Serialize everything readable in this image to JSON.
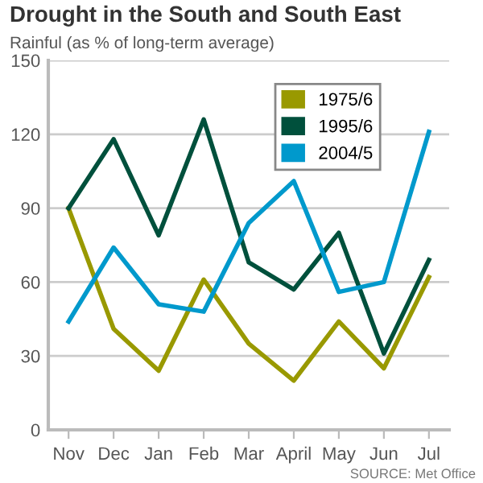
{
  "chart_data": {
    "type": "line",
    "title": "Drought in the South and South East",
    "ylabel": "Rainful (as % of long-term average)",
    "categories": [
      "Nov",
      "Dec",
      "Jan",
      "Feb",
      "Mar",
      "April",
      "May",
      "Jun",
      "Jul"
    ],
    "series": [
      {
        "name": "1975/6",
        "color": "#999900",
        "values": [
          90,
          41,
          24,
          61,
          35,
          20,
          44,
          25,
          62
        ]
      },
      {
        "name": "1995/6",
        "color": "#00503c",
        "values": [
          90,
          118,
          79,
          126,
          68,
          57,
          80,
          31,
          69
        ]
      },
      {
        "name": "2004/5",
        "color": "#0099cc",
        "values": [
          44,
          74,
          51,
          48,
          84,
          101,
          56,
          60,
          121
        ]
      }
    ],
    "ylim": [
      0,
      150
    ],
    "yticks": [
      0,
      30,
      60,
      90,
      120,
      150
    ],
    "grid": "y",
    "legend": "top right",
    "marker": "none",
    "line_style": "solid",
    "annotations": [
      "SOURCE: Met Office"
    ]
  }
}
